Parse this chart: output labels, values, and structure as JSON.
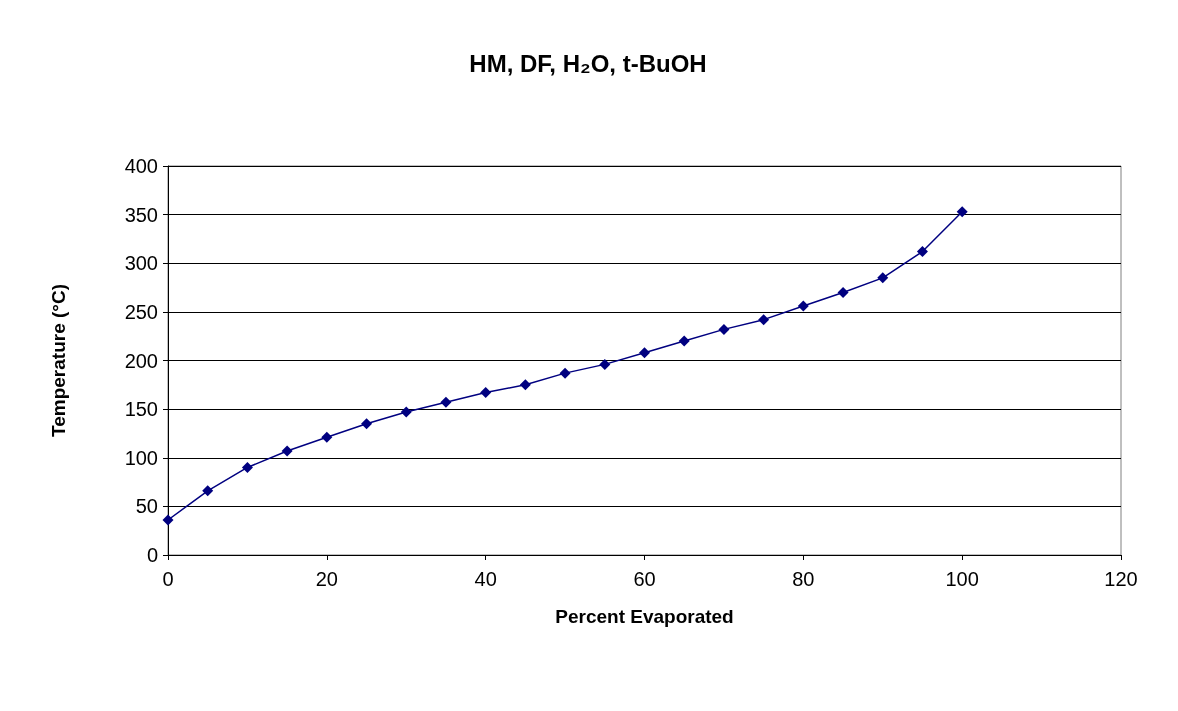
{
  "chart_data": {
    "type": "line",
    "title": "HM, DF, H₂O, t-BuOH",
    "xlabel": "Percent Evaporated",
    "ylabel": "Temperature (°C)",
    "x": [
      0,
      5,
      10,
      15,
      20,
      25,
      30,
      35,
      40,
      45,
      50,
      55,
      60,
      65,
      70,
      75,
      80,
      85,
      90,
      95,
      100
    ],
    "series": [
      {
        "color": "#000080",
        "values": [
          36,
          66,
          90,
          107,
          121,
          135,
          147,
          157,
          167,
          175,
          187,
          196,
          208,
          220,
          232,
          242,
          256,
          270,
          285,
          312,
          353
        ]
      }
    ],
    "xlim": [
      0,
      120
    ],
    "xticks": [
      0,
      20,
      40,
      60,
      80,
      100,
      120
    ],
    "ylim": [
      0,
      400
    ],
    "yticks": [
      0,
      50,
      100,
      150,
      200,
      250,
      300,
      350,
      400
    ],
    "grid": "y",
    "marker": "diamond",
    "line_style": "solid"
  }
}
